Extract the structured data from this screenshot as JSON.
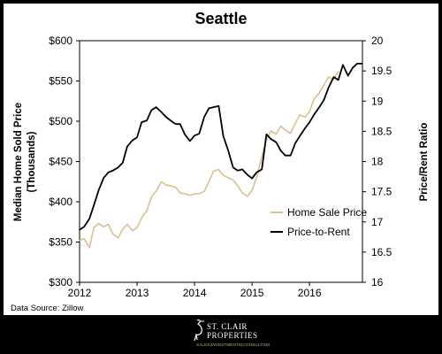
{
  "chart_data": {
    "type": "line",
    "title": "Seattle",
    "ylabel_left": "Median Home Sold Price (Thousands)",
    "ylabel_left_lines": [
      "Median Home Sold Price",
      "(Thousands)"
    ],
    "ylabel_right": "Price/Rent Ratio",
    "x_ticks": [
      "2012",
      "2013",
      "2014",
      "2015",
      "2016"
    ],
    "xlim": [
      2012.0,
      2016.92
    ],
    "y_left_ticks": [
      "$300",
      "$350",
      "$400",
      "$450",
      "$500",
      "$550",
      "$600"
    ],
    "y_left_lim": [
      300,
      600
    ],
    "y_right_ticks": [
      "16",
      "16.5",
      "17",
      "17.5",
      "18",
      "18.5",
      "19",
      "19.5",
      "20"
    ],
    "y_right_lim": [
      16,
      20
    ],
    "grid": false,
    "legend_position": "bottom-right inside plot",
    "series": [
      {
        "name": "Home Sale Price",
        "axis": "left",
        "color": "#d9c08f",
        "x": [
          2012.0,
          2012.08,
          2012.17,
          2012.25,
          2012.33,
          2012.42,
          2012.5,
          2012.58,
          2012.67,
          2012.75,
          2012.83,
          2012.92,
          2013.0,
          2013.08,
          2013.17,
          2013.25,
          2013.33,
          2013.42,
          2013.5,
          2013.58,
          2013.67,
          2013.75,
          2013.83,
          2013.92,
          2014.0,
          2014.08,
          2014.17,
          2014.25,
          2014.33,
          2014.42,
          2014.5,
          2014.58,
          2014.67,
          2014.75,
          2014.83,
          2014.92,
          2015.0,
          2015.08,
          2015.17,
          2015.25,
          2015.33,
          2015.42,
          2015.5,
          2015.58,
          2015.67,
          2015.75,
          2015.83,
          2015.92,
          2016.0,
          2016.08,
          2016.17,
          2016.25,
          2016.33,
          2016.42,
          2016.5
        ],
        "values": [
          352,
          354,
          343,
          368,
          373,
          369,
          372,
          360,
          355,
          366,
          372,
          364,
          368,
          380,
          389,
          406,
          413,
          425,
          421,
          420,
          418,
          411,
          410,
          408,
          410,
          410,
          413,
          425,
          438,
          440,
          433,
          430,
          427,
          420,
          411,
          407,
          414,
          430,
          456,
          477,
          488,
          484,
          494,
          489,
          485,
          497,
          508,
          505,
          512,
          528,
          535,
          545,
          555,
          552,
          562
        ]
      },
      {
        "name": "Price-to-Rent",
        "axis": "right",
        "color": "#000000",
        "x": [
          2012.0,
          2012.08,
          2012.17,
          2012.25,
          2012.33,
          2012.42,
          2012.5,
          2012.58,
          2012.67,
          2012.75,
          2012.83,
          2012.92,
          2013.0,
          2013.08,
          2013.17,
          2013.25,
          2013.33,
          2013.42,
          2013.5,
          2013.58,
          2013.67,
          2013.75,
          2013.83,
          2013.92,
          2014.0,
          2014.08,
          2014.17,
          2014.25,
          2014.33,
          2014.42,
          2014.5,
          2014.58,
          2014.67,
          2014.75,
          2014.83,
          2014.92,
          2015.0,
          2015.08,
          2015.17,
          2015.25,
          2015.33,
          2015.42,
          2015.5,
          2015.58,
          2015.67,
          2015.75,
          2015.83,
          2015.92,
          2016.0,
          2016.08,
          2016.17,
          2016.25,
          2016.33,
          2016.42,
          2016.5,
          2016.58,
          2016.67,
          2016.75,
          2016.83,
          2016.92
        ],
        "values": [
          16.87,
          16.92,
          17.05,
          17.28,
          17.52,
          17.73,
          17.82,
          17.85,
          17.9,
          17.98,
          18.25,
          18.35,
          18.4,
          18.65,
          18.68,
          18.85,
          18.9,
          18.82,
          18.74,
          18.68,
          18.62,
          18.62,
          18.45,
          18.34,
          18.43,
          18.46,
          18.74,
          18.88,
          18.9,
          18.92,
          18.42,
          18.2,
          17.9,
          17.85,
          17.87,
          17.78,
          17.72,
          17.82,
          17.87,
          18.45,
          18.37,
          18.32,
          18.18,
          18.1,
          18.1,
          18.3,
          18.42,
          18.55,
          18.65,
          18.78,
          18.9,
          19.02,
          19.22,
          19.4,
          19.35,
          19.6,
          19.42,
          19.55,
          19.62,
          19.62
        ]
      }
    ],
    "source": "Data Source: Zillow"
  },
  "logo": {
    "line1": "ST. CLAIR",
    "line2": "PROPERTIES",
    "tagline": "SALES|INVESTMENTS|CONSULTING",
    "accent_color": "#c9b27a"
  }
}
